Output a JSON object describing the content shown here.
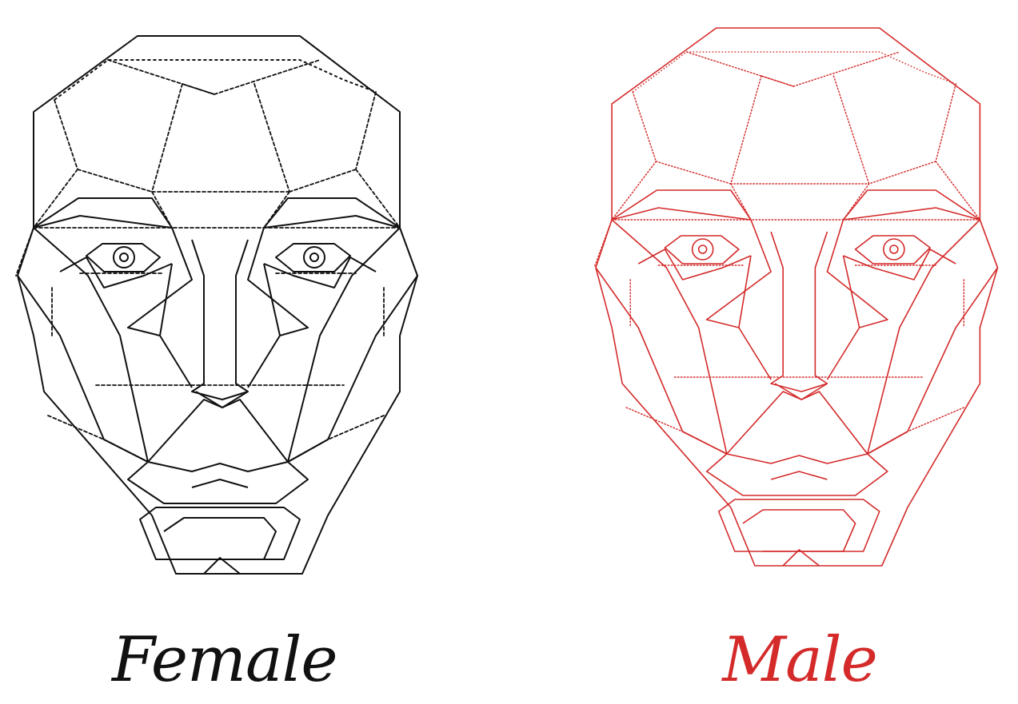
{
  "labels": {
    "female": "Female",
    "male": "Male"
  },
  "colors": {
    "female": "#111111",
    "male": "#d42a2a"
  }
}
